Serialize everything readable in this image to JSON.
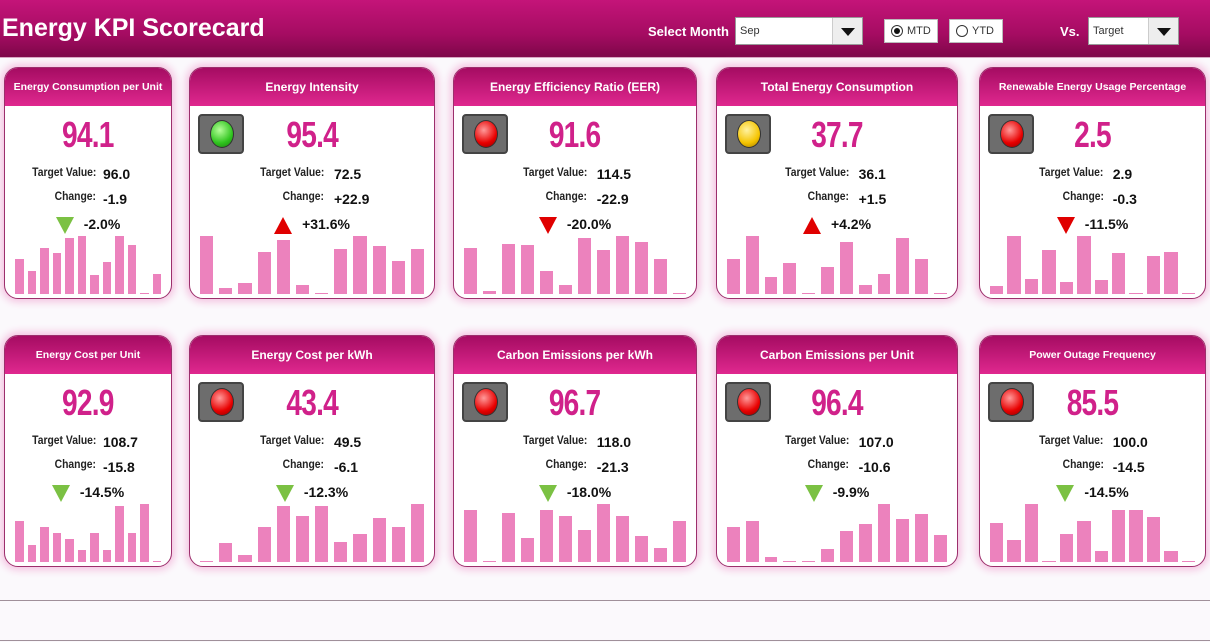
{
  "header": {
    "title": "Energy KPI Scorecard",
    "select_month_label": "Select Month",
    "month": "Sep",
    "mtd": "MTD",
    "ytd": "YTD",
    "mode": "MTD",
    "vs_label": "Vs.",
    "vs": "Target"
  },
  "colors": {
    "accent": "#c41479",
    "bar": "#ec82bd",
    "red": "#e00000",
    "green": "#7bc143",
    "yellow": "#f5c400"
  },
  "kpis": [
    {
      "title": "Energy Consumption per Unit",
      "value": "94.1",
      "target_label": "Target Value:",
      "target": "96.0",
      "change_label": "Change:",
      "change": "-1.9",
      "pct": "-2.0%",
      "dir": "down",
      "good": true,
      "light": "none",
      "bars": [
        30,
        20,
        40,
        35,
        48,
        50,
        16,
        28,
        50,
        42,
        1,
        17
      ]
    },
    {
      "title": "Energy Intensity",
      "value": "95.4",
      "target_label": "Target Value:",
      "target": "72.5",
      "change_label": "Change:",
      "change": "+22.9",
      "pct": "+31.6%",
      "dir": "up",
      "good": false,
      "light": "green",
      "bars": [
        52,
        5,
        10,
        38,
        48,
        8,
        1,
        40,
        52,
        43,
        30,
        40
      ]
    },
    {
      "title": "Energy Efficiency Ratio (EER)",
      "value": "91.6",
      "target_label": "Target Value:",
      "target": "114.5",
      "change_label": "Change:",
      "change": "-22.9",
      "pct": "-20.0%",
      "dir": "down",
      "good": false,
      "light": "red",
      "bars": [
        40,
        3,
        43,
        42,
        20,
        8,
        48,
        38,
        50,
        45,
        30,
        1
      ]
    },
    {
      "title": "Total Energy Consumption",
      "value": "37.7",
      "target_label": "Target Value:",
      "target": "36.1",
      "change_label": "Change:",
      "change": "+1.5",
      "pct": "+4.2%",
      "dir": "up",
      "good": false,
      "light": "yellow",
      "bars": [
        30,
        50,
        15,
        27,
        1,
        23,
        45,
        8,
        17,
        48,
        30,
        1
      ]
    },
    {
      "title": "Renewable Energy Usage Percentage",
      "value": "2.5",
      "target_label": "Target Value:",
      "target": "2.9",
      "change_label": "Change:",
      "change": "-0.3",
      "pct": "-11.5%",
      "dir": "down",
      "good": false,
      "light": "red",
      "bars": [
        7,
        50,
        13,
        38,
        10,
        50,
        12,
        35,
        1,
        33,
        36,
        1
      ]
    },
    {
      "title": "Energy Cost per Unit",
      "value": "92.9",
      "target_label": "Target Value:",
      "target": "108.7",
      "change_label": "Change:",
      "change": "-15.8",
      "pct": "-14.5%",
      "dir": "down",
      "good": true,
      "light": "none",
      "bars": [
        35,
        15,
        30,
        25,
        20,
        10,
        25,
        10,
        48,
        25,
        50,
        1
      ]
    },
    {
      "title": "Energy Cost per kWh",
      "value": "43.4",
      "target_label": "Target Value:",
      "target": "49.5",
      "change_label": "Change:",
      "change": "-6.1",
      "pct": "-12.3%",
      "dir": "down",
      "good": true,
      "light": "red",
      "bars": [
        1,
        16,
        6,
        30,
        48,
        40,
        48,
        17,
        24,
        38,
        30,
        50
      ]
    },
    {
      "title": "Carbon Emissions per kWh",
      "value": "96.7",
      "target_label": "Target Value:",
      "target": "118.0",
      "change_label": "Change:",
      "change": "-21.3",
      "pct": "-18.0%",
      "dir": "down",
      "good": true,
      "light": "red",
      "bars": [
        45,
        1,
        42,
        21,
        45,
        40,
        28,
        50,
        40,
        22,
        12,
        35
      ]
    },
    {
      "title": "Carbon Emissions per Unit",
      "value": "96.4",
      "target_label": "Target Value:",
      "target": "107.0",
      "change_label": "Change:",
      "change": "-10.6",
      "pct": "-9.9%",
      "dir": "down",
      "good": true,
      "light": "red",
      "bars": [
        30,
        35,
        4,
        1,
        1,
        11,
        27,
        33,
        50,
        37,
        41,
        23
      ]
    },
    {
      "title": "Power Outage Frequency",
      "value": "85.5",
      "target_label": "Target Value:",
      "target": "100.0",
      "change_label": "Change:",
      "change": "-14.5",
      "pct": "-14.5%",
      "dir": "down",
      "good": true,
      "light": "red",
      "bars": [
        35,
        20,
        52,
        1,
        25,
        37,
        10,
        47,
        47,
        40,
        10,
        1
      ]
    }
  ]
}
